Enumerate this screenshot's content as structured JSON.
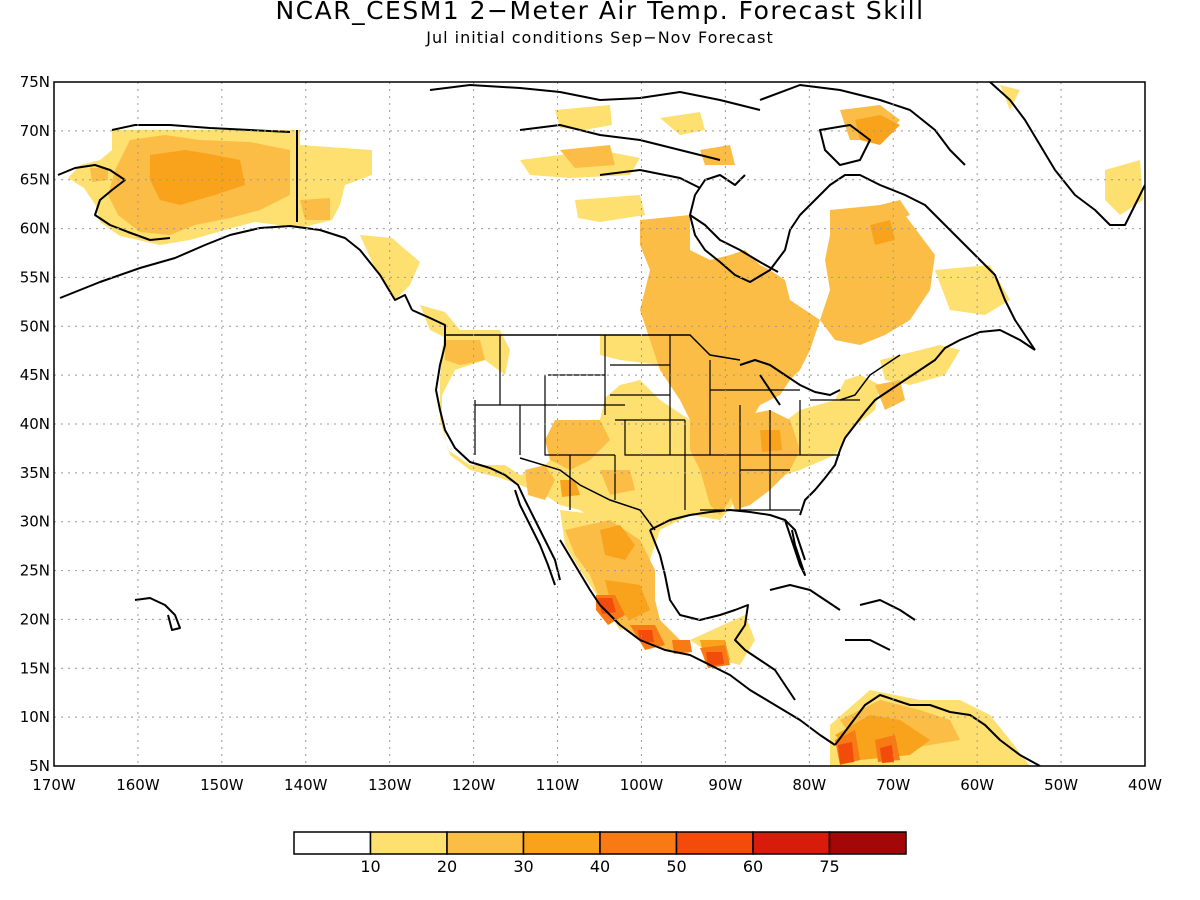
{
  "map": {
    "title": "NCAR_CESM1 2−Meter Air Temp. Forecast Skill",
    "subtitle": "Jul initial conditions   Sep−Nov Forecast",
    "extent": {
      "lon": [
        -170,
        -40
      ],
      "lat": [
        5,
        75
      ]
    },
    "lon_labels": [
      "170W",
      "160W",
      "150W",
      "140W",
      "130W",
      "120W",
      "110W",
      "100W",
      "90W",
      "80W",
      "70W",
      "60W",
      "50W",
      "40W"
    ],
    "lat_labels": [
      "5N",
      "10N",
      "15N",
      "20N",
      "25N",
      "30N",
      "35N",
      "40N",
      "45N",
      "50N",
      "55N",
      "60N",
      "65N",
      "70N",
      "75N"
    ],
    "gridlines": true
  },
  "colorbar": {
    "labels": [
      "10",
      "20",
      "30",
      "40",
      "50",
      "60",
      "75"
    ],
    "colors": [
      "#ffffff",
      "#fde070",
      "#fbbd46",
      "#f9a21c",
      "#f77a14",
      "#f24b0c",
      "#d81c0c",
      "#a30808"
    ]
  }
}
